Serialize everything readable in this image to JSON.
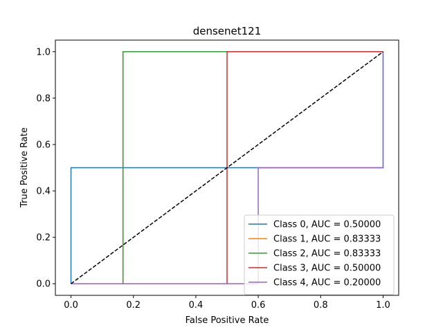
{
  "chart_data": {
    "type": "line",
    "title": "densenet121",
    "xlabel": "False Positive Rate",
    "ylabel": "True Positive Rate",
    "xlim": [
      -0.05,
      1.05
    ],
    "ylim": [
      -0.05,
      1.05
    ],
    "xticks": [
      0.0,
      0.2,
      0.4,
      0.6,
      0.8,
      1.0
    ],
    "xtick_labels": [
      "0.0",
      "0.2",
      "0.4",
      "0.6",
      "0.8",
      "1.0"
    ],
    "yticks": [
      0.0,
      0.2,
      0.4,
      0.6,
      0.8,
      1.0
    ],
    "ytick_labels": [
      "0.0",
      "0.2",
      "0.4",
      "0.6",
      "0.8",
      "1.0"
    ],
    "grid": false,
    "legend_position": "lower-right",
    "series": [
      {
        "name": "Class 0, AUC = 0.50000",
        "color": "#1f77b4",
        "x": [
          0,
          0,
          0,
          0.6,
          1.0,
          1.0
        ],
        "y": [
          0,
          0.5,
          0.5,
          0.5,
          0.5,
          1.0
        ]
      },
      {
        "name": "Class 1, AUC = 0.83333",
        "color": "#ff7f0e",
        "x": [
          0,
          0,
          0.1667,
          0.1667,
          1.0
        ],
        "y": [
          0,
          0,
          0,
          1.0,
          1.0
        ]
      },
      {
        "name": "Class 2, AUC = 0.83333",
        "color": "#2ca02c",
        "x": [
          0,
          0.1667,
          0.1667,
          1.0
        ],
        "y": [
          0,
          0,
          1.0,
          1.0
        ]
      },
      {
        "name": "Class 3, AUC = 0.50000",
        "color": "#d62728",
        "x": [
          0,
          0.5,
          0.5,
          1.0
        ],
        "y": [
          0,
          0,
          1.0,
          1.0
        ]
      },
      {
        "name": "Class 4, AUC = 0.20000",
        "color": "#9467bd",
        "x": [
          0,
          0.6,
          0.6,
          1.0,
          1.0
        ],
        "y": [
          0,
          0,
          0.5,
          0.5,
          1.0
        ]
      }
    ],
    "reference_line": {
      "x": [
        0,
        1
      ],
      "y": [
        0,
        1
      ],
      "color": "#000000",
      "style": "dashed"
    }
  }
}
